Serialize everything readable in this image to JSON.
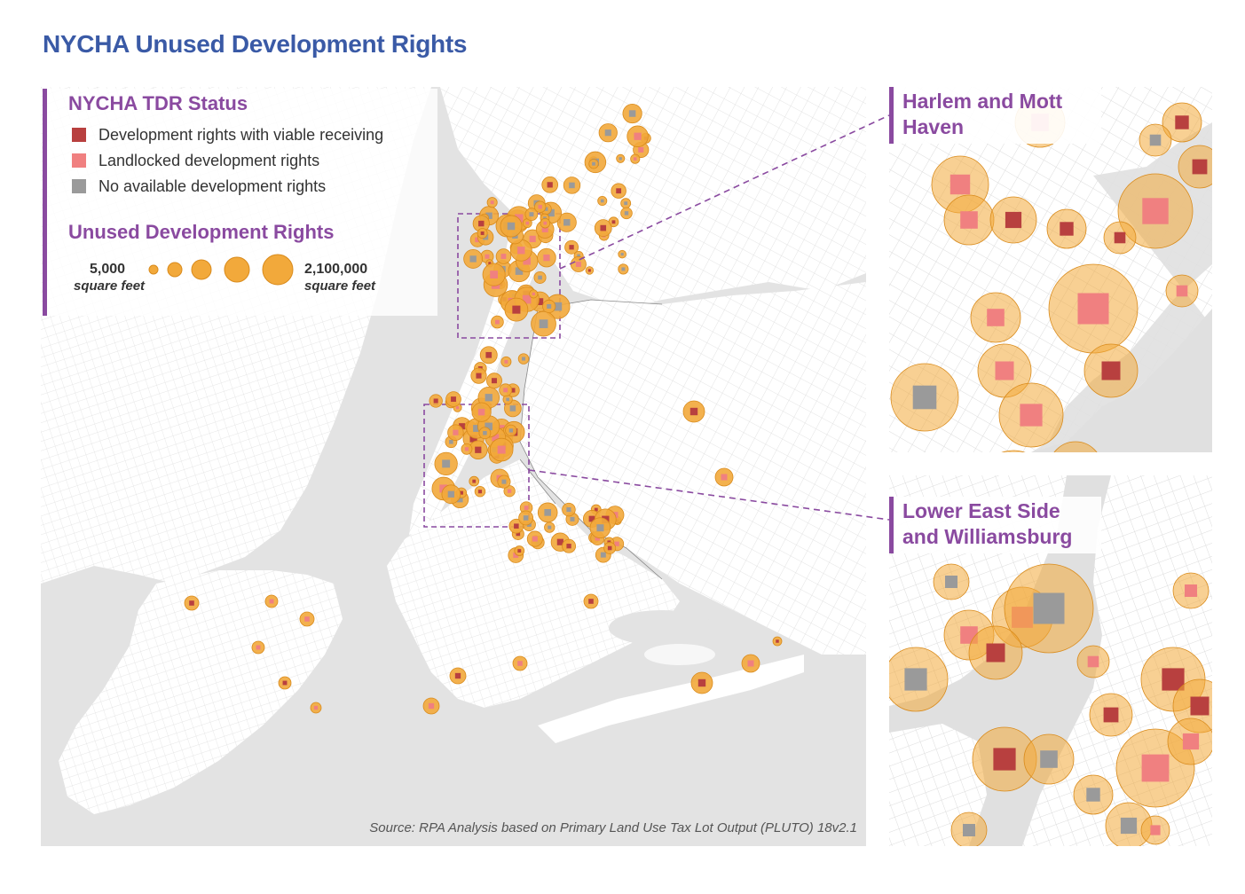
{
  "title": "NYCHA Unused Development Rights",
  "legend": {
    "status_title": "NYCHA TDR Status",
    "status_items": [
      {
        "label": "Development rights with viable receiving",
        "color": "#b8403f"
      },
      {
        "label": "Landlocked development rights",
        "color": "#f08080"
      },
      {
        "label": "No available development rights",
        "color": "#9a9a9a"
      }
    ],
    "size_title": "Unused Development Rights",
    "size_min_value": "5,000",
    "size_min_unit": "square feet",
    "size_max_value": "2,100,000",
    "size_max_unit": "square feet",
    "bubble_color": "#f2a93b"
  },
  "source": "Source: RPA Analysis based on Primary Land Use Tax Lot Output (PLUTO) 18v2.1",
  "insets": [
    {
      "label": "Harlem and Mott Haven"
    },
    {
      "label": "Lower East Side and Williamsburg"
    }
  ],
  "colors": {
    "water": "#e3e3e3",
    "land": "#ffffff",
    "streets": "#d9d9d9",
    "accent": "#8a4aa0",
    "title": "#3a5aa6"
  }
}
